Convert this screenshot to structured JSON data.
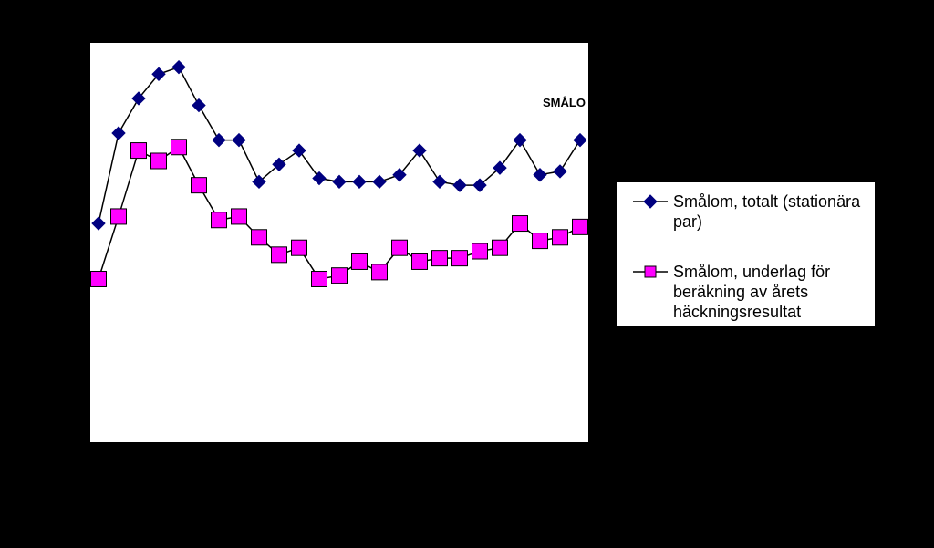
{
  "chart_data": {
    "type": "line",
    "title": "SMÅLO",
    "x": [
      1,
      2,
      3,
      4,
      5,
      6,
      7,
      8,
      9,
      10,
      11,
      12,
      13,
      14,
      15,
      16,
      17,
      18,
      19,
      20,
      21,
      22,
      23,
      24,
      25,
      26
    ],
    "series": [
      {
        "name": "Smålom, totalt (stationära par)",
        "marker": "diamond",
        "color": "#000080",
        "values": [
          48,
          74,
          84,
          91,
          93,
          82,
          72,
          72,
          60,
          65,
          69,
          61,
          60,
          60,
          60,
          62,
          69,
          60,
          59,
          59,
          64,
          72,
          62,
          63,
          72,
          null
        ]
      },
      {
        "name": "Smålom, underlag för beräkning av årets häckningsresultat",
        "marker": "square",
        "color": "#FF00FF",
        "values": [
          32,
          50,
          69,
          66,
          70,
          59,
          49,
          50,
          44,
          39,
          41,
          32,
          33,
          37,
          34,
          41,
          37,
          38,
          38,
          40,
          41,
          48,
          43,
          44,
          47,
          null
        ]
      }
    ],
    "ylim": [
      -15,
      100
    ],
    "legend_position": "right"
  },
  "colors": {
    "background": "#000000",
    "plot_area": "#FFFFFF",
    "line": "#000000"
  }
}
